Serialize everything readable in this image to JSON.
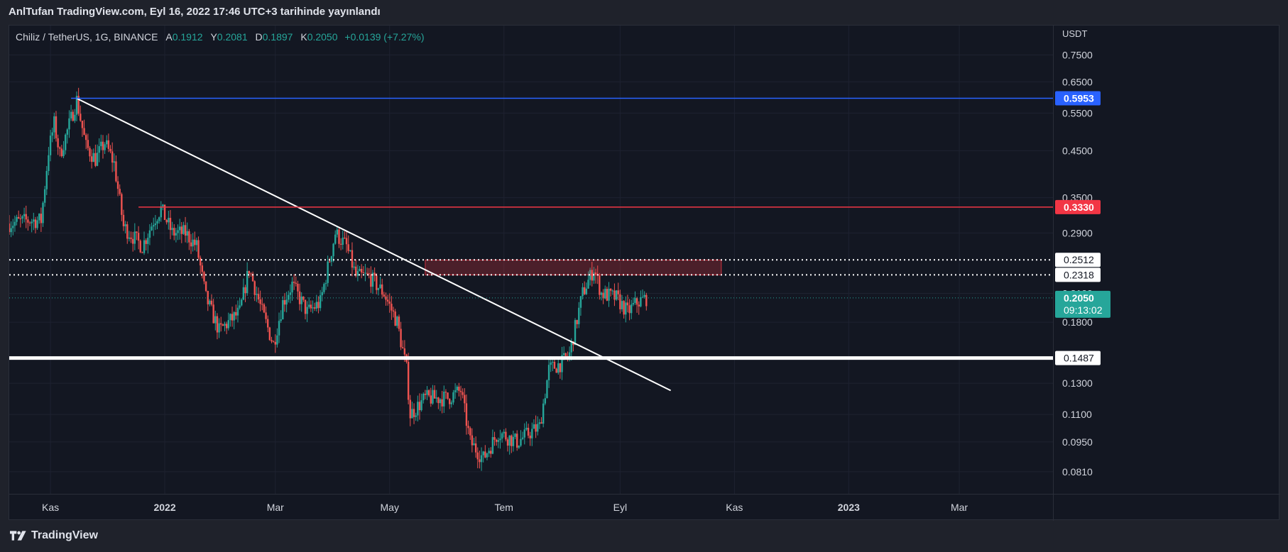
{
  "caption": "AnlTufan TradingView.com, Eyl 16, 2022 17:46 UTC+3 tarihinde yayınlandı",
  "brand": {
    "name": "TradingView",
    "icon": "tradingview-logo-icon"
  },
  "legend": {
    "symbol": "Chiliz / TetherUS, 1G, BINANCE",
    "o_label": "A",
    "o": "0.1912",
    "h_label": "Y",
    "h": "0.2081",
    "l_label": "D",
    "l": "0.1897",
    "c_label": "K",
    "c": "0.2050",
    "change": "+0.0139 (+7.27%)"
  },
  "colors": {
    "up": "#26a69a",
    "down": "#ef5350",
    "blue_line": "#2962ff",
    "red_line": "#f23645",
    "white_line": "#ffffff",
    "zone": "#f23645"
  },
  "chart_data": {
    "type": "candlestick",
    "y_unit_label": "USDT",
    "y_scale": "log",
    "ylim": [
      0.072,
      0.82
    ],
    "y_ticks": [
      "0.7500",
      "0.6500",
      "0.5500",
      "0.4500",
      "0.3500",
      "0.2900",
      "0.2100",
      "0.1800",
      "0.1300",
      "0.1100",
      "0.0950",
      "0.0810"
    ],
    "x_ticks": [
      {
        "label": "Kas",
        "date": "2021-11-01"
      },
      {
        "label": "2022",
        "date": "2022-01-01"
      },
      {
        "label": "Mar",
        "date": "2022-03-01"
      },
      {
        "label": "May",
        "date": "2022-05-01"
      },
      {
        "label": "Tem",
        "date": "2022-07-01"
      },
      {
        "label": "Eyl",
        "date": "2022-09-01"
      },
      {
        "label": "Kas",
        "date": "2022-11-01"
      },
      {
        "label": "2023",
        "date": "2023-01-01"
      },
      {
        "label": "Mar",
        "date": "2023-03-01"
      }
    ],
    "xlim": [
      "2021-10-10",
      "2023-04-20"
    ],
    "grid": true,
    "price_path": [
      [
        "2021-10-10",
        0.305
      ],
      [
        "2021-10-20",
        0.31
      ],
      [
        "2021-10-27",
        0.31
      ],
      [
        "2021-10-31",
        0.45
      ],
      [
        "2021-11-03",
        0.52
      ],
      [
        "2021-11-06",
        0.44
      ],
      [
        "2021-11-10",
        0.5
      ],
      [
        "2021-11-15",
        0.59
      ],
      [
        "2021-11-20",
        0.46
      ],
      [
        "2021-11-25",
        0.43
      ],
      [
        "2021-11-30",
        0.47
      ],
      [
        "2021-12-05",
        0.42
      ],
      [
        "2021-12-10",
        0.3
      ],
      [
        "2021-12-20",
        0.27
      ],
      [
        "2021-12-26",
        0.31
      ],
      [
        "2021-12-30",
        0.33
      ],
      [
        "2022-01-05",
        0.29
      ],
      [
        "2022-01-12",
        0.29
      ],
      [
        "2022-01-18",
        0.27
      ],
      [
        "2022-01-23",
        0.205
      ],
      [
        "2022-01-30",
        0.172
      ],
      [
        "2022-02-10",
        0.19
      ],
      [
        "2022-02-15",
        0.24
      ],
      [
        "2022-02-22",
        0.19
      ],
      [
        "2022-02-28",
        0.16
      ],
      [
        "2022-03-05",
        0.2
      ],
      [
        "2022-03-10",
        0.22
      ],
      [
        "2022-03-18",
        0.19
      ],
      [
        "2022-03-25",
        0.2
      ],
      [
        "2022-04-02",
        0.29
      ],
      [
        "2022-04-08",
        0.27
      ],
      [
        "2022-04-13",
        0.23
      ],
      [
        "2022-04-20",
        0.23
      ],
      [
        "2022-04-28",
        0.21
      ],
      [
        "2022-05-05",
        0.18
      ],
      [
        "2022-05-10",
        0.14
      ],
      [
        "2022-05-12",
        0.11
      ],
      [
        "2022-05-20",
        0.12
      ],
      [
        "2022-06-01",
        0.12
      ],
      [
        "2022-06-08",
        0.125
      ],
      [
        "2022-06-13",
        0.095
      ],
      [
        "2022-06-20",
        0.087
      ],
      [
        "2022-06-28",
        0.1
      ],
      [
        "2022-07-08",
        0.095
      ],
      [
        "2022-07-15",
        0.1
      ],
      [
        "2022-07-20",
        0.103
      ],
      [
        "2022-07-25",
        0.14
      ],
      [
        "2022-08-01",
        0.145
      ],
      [
        "2022-08-05",
        0.152
      ],
      [
        "2022-08-12",
        0.21
      ],
      [
        "2022-08-18",
        0.24
      ],
      [
        "2022-08-22",
        0.21
      ],
      [
        "2022-08-30",
        0.205
      ],
      [
        "2022-09-05",
        0.19
      ],
      [
        "2022-09-10",
        0.2
      ],
      [
        "2022-09-15",
        0.205
      ]
    ],
    "horizontal_levels": [
      {
        "price": 0.5953,
        "label": "0.5953",
        "style": "solid",
        "color": "blue",
        "from": "2021-11-12"
      },
      {
        "price": 0.333,
        "label": "0.3330",
        "style": "solid",
        "color": "red",
        "from": "2021-12-18"
      },
      {
        "price": 0.2512,
        "label": "0.2512",
        "style": "dotted",
        "color": "white",
        "from": "2021-10-10"
      },
      {
        "price": 0.2318,
        "label": "0.2318",
        "style": "dotted",
        "color": "white",
        "from": "2021-10-10"
      },
      {
        "price": 0.1487,
        "label": "0.1487",
        "style": "thick",
        "color": "white",
        "from": "2021-10-10"
      }
    ],
    "trendline": {
      "from": [
        "2021-11-15",
        0.595
      ],
      "to": [
        "2022-09-28",
        0.125
      ]
    },
    "zone": {
      "from": "2022-05-20",
      "to": "2022-10-25",
      "top": 0.251,
      "bottom": 0.2318
    },
    "last_price": {
      "price": "0.2050",
      "countdown": "09:13:02",
      "hidden_tick": "0.2100"
    }
  }
}
